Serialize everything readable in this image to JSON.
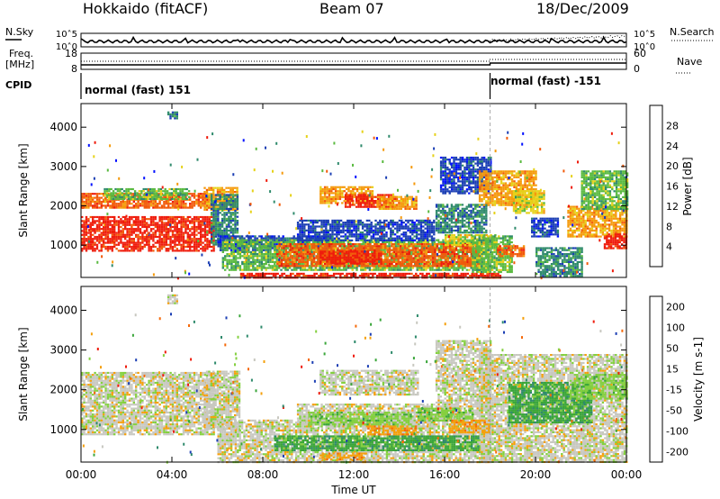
{
  "header": {
    "station": "Hokkaido (fitACF)",
    "beam": "Beam 07",
    "date": "18/Dec/2009"
  },
  "left_labels": {
    "nsky": "N.Sky",
    "freq_line1": "Freq.",
    "freq_line2": "[MHz]",
    "cpid": "CPID"
  },
  "right_labels": {
    "nsearch": "N.Search",
    "nave": "Nave"
  },
  "cpid_modes": [
    {
      "label": "normal (fast) 151",
      "start_hour": 0.0
    },
    {
      "label": "normal (fast) -151",
      "start_hour": 18.0
    }
  ],
  "chart_data": [
    {
      "type": "line",
      "panel": "noise",
      "series": [
        {
          "name": "N.Sky"
        },
        {
          "name": "N.Search"
        }
      ],
      "y_left_ticks": [
        "10^5",
        "10^0"
      ],
      "y_right_ticks": [
        "10^5",
        "10^0"
      ],
      "xlim": [
        0,
        24
      ]
    },
    {
      "type": "line",
      "panel": "frequency",
      "series": [
        {
          "name": "Freq."
        },
        {
          "name": "Nave"
        }
      ],
      "y_left_ticks": [
        "18",
        "8"
      ],
      "y_right_ticks": [
        "60",
        "0"
      ],
      "xlim": [
        0,
        24
      ]
    },
    {
      "type": "heatmap",
      "panel": "power",
      "ylabel": "Slant Range [km]",
      "ylim": [
        180,
        4600
      ],
      "yticks": [
        "1000",
        "2000",
        "3000",
        "4000"
      ],
      "colorbar_label": "Power [dB]",
      "colorbar_ticks": [
        "4",
        "8",
        "12",
        "16",
        "20",
        "24",
        "28"
      ],
      "colors": [
        "#0010ff",
        "#1c3fb4",
        "#2f8a6c",
        "#5aba40",
        "#e6d21a",
        "#f59a0c",
        "#f25a0a",
        "#ef1c0c"
      ],
      "regions": [
        {
          "t": [
            0.0,
            5.8
          ],
          "r": [
            860,
            1740
          ],
          "level": 7
        },
        {
          "t": [
            0.0,
            5.6
          ],
          "r": [
            1960,
            2330
          ],
          "level": 6
        },
        {
          "t": [
            1.0,
            4.8
          ],
          "r": [
            2150,
            2450
          ],
          "level": 3
        },
        {
          "t": [
            5.4,
            6.9
          ],
          "r": [
            1880,
            2480
          ],
          "level": 5
        },
        {
          "t": [
            5.7,
            6.9
          ],
          "r": [
            1020,
            2300
          ],
          "level": 2
        },
        {
          "t": [
            6.0,
            11.0
          ],
          "r": [
            860,
            1250
          ],
          "level": 1
        },
        {
          "t": [
            6.2,
            18.0
          ],
          "r": [
            380,
            1150
          ],
          "level": 3
        },
        {
          "t": [
            8.6,
            17.5
          ],
          "r": [
            480,
            1050
          ],
          "level": 6
        },
        {
          "t": [
            10.5,
            13.2
          ],
          "r": [
            520,
            860
          ],
          "level": 7
        },
        {
          "t": [
            7.0,
            18.5
          ],
          "r": [
            190,
            300
          ],
          "level": 7
        },
        {
          "t": [
            9.5,
            15.5
          ],
          "r": [
            1100,
            1650
          ],
          "level": 1
        },
        {
          "t": [
            10.5,
            12.8
          ],
          "r": [
            2050,
            2500
          ],
          "level": 5
        },
        {
          "t": [
            11.6,
            13.8
          ],
          "r": [
            1980,
            2300
          ],
          "level": 7
        },
        {
          "t": [
            13.0,
            14.8
          ],
          "r": [
            1900,
            2250
          ],
          "level": 5
        },
        {
          "t": [
            15.6,
            17.8
          ],
          "r": [
            1300,
            2050
          ],
          "level": 2
        },
        {
          "t": [
            15.8,
            18.0
          ],
          "r": [
            2300,
            3250
          ],
          "level": 1
        },
        {
          "t": [
            16.0,
            18.2
          ],
          "r": [
            980,
            1280
          ],
          "level": 4
        },
        {
          "t": [
            17.5,
            20.0
          ],
          "r": [
            2000,
            2900
          ],
          "level": 5
        },
        {
          "t": [
            17.2,
            19.0
          ],
          "r": [
            300,
            1250
          ],
          "level": 3
        },
        {
          "t": [
            18.3,
            19.5
          ],
          "r": [
            700,
            1000
          ],
          "level": 6
        },
        {
          "t": [
            19.0,
            20.4
          ],
          "r": [
            1800,
            2400
          ],
          "level": 4
        },
        {
          "t": [
            19.8,
            21.0
          ],
          "r": [
            1200,
            1700
          ],
          "level": 1
        },
        {
          "t": [
            20.0,
            22.0
          ],
          "r": [
            200,
            950
          ],
          "level": 2
        },
        {
          "t": [
            21.4,
            24.0
          ],
          "r": [
            1200,
            2000
          ],
          "level": 5
        },
        {
          "t": [
            22.0,
            24.0
          ],
          "r": [
            1900,
            2900
          ],
          "level": 3
        },
        {
          "t": [
            23.0,
            24.0
          ],
          "r": [
            900,
            1300
          ],
          "level": 7
        },
        {
          "t": [
            3.8,
            4.2
          ],
          "r": [
            4200,
            4400
          ],
          "level": 2
        }
      ]
    },
    {
      "type": "heatmap",
      "panel": "velocity",
      "xlabel": "Time UT",
      "ylabel": "Slant Range [km]",
      "ylim": [
        180,
        4600
      ],
      "yticks": [
        "1000",
        "2000",
        "3000",
        "4000"
      ],
      "xticks": [
        "00:00",
        "04:00",
        "08:00",
        "12:00",
        "16:00",
        "20:00",
        "00:00"
      ],
      "colorbar_label": "Velocity [m s-1]",
      "colorbar_ticks": [
        "200",
        "100",
        "50",
        "15",
        "-15",
        "-50",
        "-100",
        "-200"
      ],
      "colors": [
        "#1c3fb4",
        "#2f8a6c",
        "#3aa63a",
        "#84d040",
        "#c8c8c0",
        "#f5a00c",
        "#f56a0a",
        "#ef1c0c"
      ],
      "regions": [
        {
          "t": [
            0.0,
            5.8
          ],
          "r": [
            860,
            2450
          ],
          "level": 4
        },
        {
          "t": [
            5.4,
            7.0
          ],
          "r": [
            1000,
            2480
          ],
          "level": 4
        },
        {
          "t": [
            6.0,
            18.0
          ],
          "r": [
            200,
            1250
          ],
          "level": 4
        },
        {
          "t": [
            9.5,
            15.5
          ],
          "r": [
            1100,
            1650
          ],
          "level": 4
        },
        {
          "t": [
            10.5,
            14.8
          ],
          "r": [
            1900,
            2500
          ],
          "level": 4
        },
        {
          "t": [
            15.6,
            18.0
          ],
          "r": [
            1300,
            3250
          ],
          "level": 4
        },
        {
          "t": [
            17.5,
            24.0
          ],
          "r": [
            200,
            2900
          ],
          "level": 4
        },
        {
          "t": [
            10.0,
            14.5
          ],
          "r": [
            1150,
            1450
          ],
          "level": 3
        },
        {
          "t": [
            14.8,
            17.2
          ],
          "r": [
            1250,
            1550
          ],
          "level": 3
        },
        {
          "t": [
            8.5,
            17.5
          ],
          "r": [
            480,
            850
          ],
          "level": 2
        },
        {
          "t": [
            12.6,
            14.8
          ],
          "r": [
            900,
            1100
          ],
          "level": 5
        },
        {
          "t": [
            16.2,
            18.0
          ],
          "r": [
            950,
            1250
          ],
          "level": 5
        },
        {
          "t": [
            10.5,
            12.5
          ],
          "r": [
            250,
            420
          ],
          "level": 5
        },
        {
          "t": [
            18.8,
            22.5
          ],
          "r": [
            1200,
            2200
          ],
          "level": 2
        },
        {
          "t": [
            21.5,
            24.0
          ],
          "r": [
            1800,
            2400
          ],
          "level": 3
        },
        {
          "t": [
            3.8,
            4.2
          ],
          "r": [
            4200,
            4400
          ],
          "level": 4
        }
      ]
    }
  ]
}
